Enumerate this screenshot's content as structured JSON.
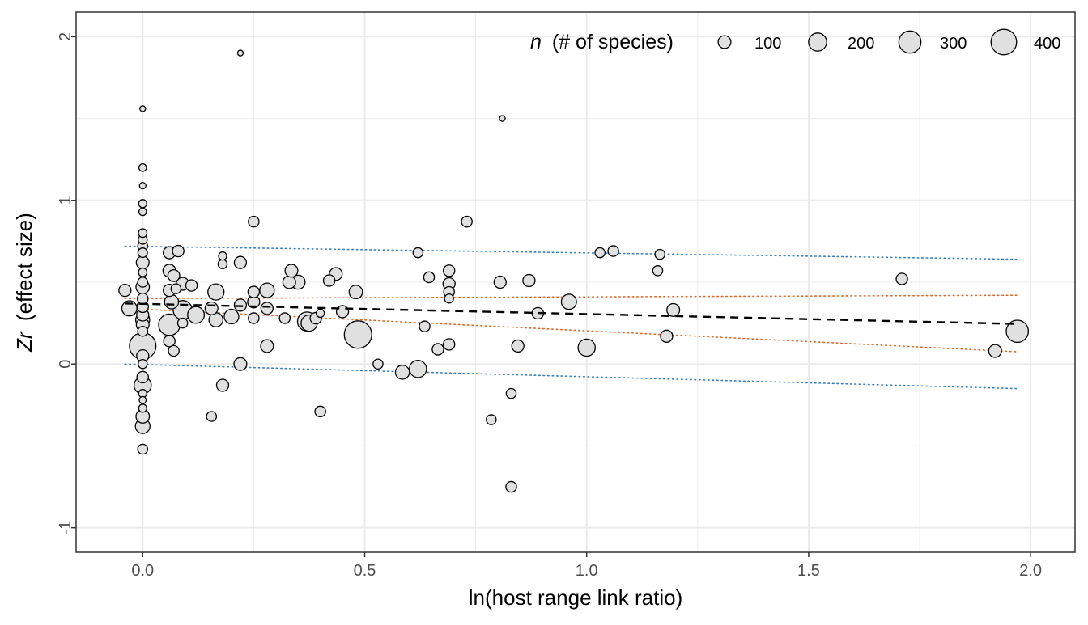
{
  "chart_data": {
    "type": "scatter",
    "title": "",
    "xlabel": "ln(host range link ratio)",
    "ylabel_var": "Zr",
    "ylabel_rest": "(effect size)",
    "xlim": [
      -0.15,
      2.1
    ],
    "ylim": [
      -1.15,
      2.15
    ],
    "xticks": [
      0.0,
      0.5,
      1.0,
      1.5,
      2.0
    ],
    "xtick_labels": [
      "0.0",
      "0.5",
      "1.0",
      "1.5",
      "2.0"
    ],
    "yticks": [
      -1,
      0,
      1,
      2
    ],
    "ytick_labels": [
      "-1",
      "0",
      "1",
      "2"
    ],
    "grid": true,
    "legend": {
      "position": "top-right",
      "title_var": "n",
      "title_rest": "(# of species)",
      "entries": [
        {
          "label": "100",
          "n": 100
        },
        {
          "label": "200",
          "n": 200
        },
        {
          "label": "300",
          "n": 300
        },
        {
          "label": "400",
          "n": 400
        }
      ]
    },
    "colors": {
      "point_fill": "#e0e0e0",
      "point_stroke": "#000000",
      "fit_line": "#000000",
      "confidence_band": "#e06a2a",
      "prediction_band": "#3a7fc0",
      "grid": "#ebebeb",
      "panel_border": "#333333"
    },
    "fit": {
      "x": [
        -0.04,
        1.97
      ],
      "y": [
        0.37,
        0.245
      ]
    },
    "confidence_interval": {
      "x": [
        -0.04,
        1.97
      ],
      "lower": [
        0.34,
        0.075
      ],
      "upper": [
        0.4,
        0.42
      ]
    },
    "prediction_interval": {
      "x": [
        -0.04,
        1.97
      ],
      "lower": [
        0.0,
        -0.15
      ],
      "upper": [
        0.72,
        0.64
      ]
    },
    "points": [
      {
        "x": 0.0,
        "y": 1.56,
        "n": 20
      },
      {
        "x": 0.0,
        "y": 1.2,
        "n": 35
      },
      {
        "x": 0.0,
        "y": 1.09,
        "n": 25
      },
      {
        "x": 0.0,
        "y": 0.98,
        "n": 40
      },
      {
        "x": 0.0,
        "y": 0.93,
        "n": 35
      },
      {
        "x": 0.0,
        "y": 0.8,
        "n": 45
      },
      {
        "x": 0.0,
        "y": 0.76,
        "n": 50
      },
      {
        "x": 0.0,
        "y": 0.72,
        "n": 60
      },
      {
        "x": 0.0,
        "y": 0.68,
        "n": 55
      },
      {
        "x": 0.0,
        "y": 0.62,
        "n": 100
      },
      {
        "x": 0.0,
        "y": 0.56,
        "n": 45
      },
      {
        "x": 0.0,
        "y": 0.5,
        "n": 60
      },
      {
        "x": 0.0,
        "y": 0.47,
        "n": 110
      },
      {
        "x": 0.0,
        "y": 0.4,
        "n": 70
      },
      {
        "x": 0.0,
        "y": 0.35,
        "n": 80
      },
      {
        "x": 0.0,
        "y": 0.3,
        "n": 90
      },
      {
        "x": 0.0,
        "y": 0.27,
        "n": 120
      },
      {
        "x": 0.0,
        "y": 0.24,
        "n": 100
      },
      {
        "x": 0.0,
        "y": 0.2,
        "n": 60
      },
      {
        "x": 0.0,
        "y": 0.11,
        "n": 430
      },
      {
        "x": 0.0,
        "y": 0.05,
        "n": 90
      },
      {
        "x": 0.0,
        "y": 0.0,
        "n": 50
      },
      {
        "x": 0.0,
        "y": -0.08,
        "n": 80
      },
      {
        "x": 0.0,
        "y": -0.13,
        "n": 180
      },
      {
        "x": 0.0,
        "y": -0.18,
        "n": 40
      },
      {
        "x": 0.0,
        "y": -0.22,
        "n": 30
      },
      {
        "x": 0.0,
        "y": -0.27,
        "n": 40
      },
      {
        "x": 0.0,
        "y": -0.32,
        "n": 110
      },
      {
        "x": 0.0,
        "y": -0.38,
        "n": 130
      },
      {
        "x": 0.0,
        "y": -0.52,
        "n": 60
      },
      {
        "x": -0.04,
        "y": 0.45,
        "n": 90
      },
      {
        "x": -0.03,
        "y": 0.34,
        "n": 140
      },
      {
        "x": 0.06,
        "y": 0.68,
        "n": 90
      },
      {
        "x": 0.06,
        "y": 0.57,
        "n": 100
      },
      {
        "x": 0.06,
        "y": 0.45,
        "n": 90
      },
      {
        "x": 0.06,
        "y": 0.14,
        "n": 80
      },
      {
        "x": 0.06,
        "y": 0.24,
        "n": 280
      },
      {
        "x": 0.065,
        "y": 0.38,
        "n": 120
      },
      {
        "x": 0.07,
        "y": 0.54,
        "n": 85
      },
      {
        "x": 0.075,
        "y": 0.46,
        "n": 60
      },
      {
        "x": 0.07,
        "y": 0.08,
        "n": 70
      },
      {
        "x": 0.08,
        "y": 0.69,
        "n": 80
      },
      {
        "x": 0.09,
        "y": 0.33,
        "n": 220
      },
      {
        "x": 0.09,
        "y": 0.25,
        "n": 60
      },
      {
        "x": 0.09,
        "y": 0.49,
        "n": 100
      },
      {
        "x": 0.11,
        "y": 0.48,
        "n": 80
      },
      {
        "x": 0.12,
        "y": 0.3,
        "n": 170
      },
      {
        "x": 0.155,
        "y": 0.34,
        "n": 100
      },
      {
        "x": 0.155,
        "y": -0.32,
        "n": 60
      },
      {
        "x": 0.165,
        "y": 0.44,
        "n": 160
      },
      {
        "x": 0.165,
        "y": 0.27,
        "n": 120
      },
      {
        "x": 0.18,
        "y": 0.66,
        "n": 40
      },
      {
        "x": 0.18,
        "y": 0.61,
        "n": 50
      },
      {
        "x": 0.18,
        "y": -0.13,
        "n": 90
      },
      {
        "x": 0.2,
        "y": 0.29,
        "n": 130
      },
      {
        "x": 0.22,
        "y": 1.9,
        "n": 20
      },
      {
        "x": 0.22,
        "y": 0.62,
        "n": 90
      },
      {
        "x": 0.22,
        "y": 0.36,
        "n": 90
      },
      {
        "x": 0.22,
        "y": 0.0,
        "n": 100
      },
      {
        "x": 0.25,
        "y": 0.87,
        "n": 70
      },
      {
        "x": 0.25,
        "y": 0.44,
        "n": 80
      },
      {
        "x": 0.25,
        "y": 0.38,
        "n": 90
      },
      {
        "x": 0.25,
        "y": 0.28,
        "n": 70
      },
      {
        "x": 0.28,
        "y": 0.45,
        "n": 130
      },
      {
        "x": 0.28,
        "y": 0.34,
        "n": 90
      },
      {
        "x": 0.28,
        "y": 0.11,
        "n": 100
      },
      {
        "x": 0.32,
        "y": 0.28,
        "n": 70
      },
      {
        "x": 0.33,
        "y": 0.5,
        "n": 100
      },
      {
        "x": 0.335,
        "y": 0.57,
        "n": 100
      },
      {
        "x": 0.35,
        "y": 0.5,
        "n": 120
      },
      {
        "x": 0.37,
        "y": 0.26,
        "n": 220
      },
      {
        "x": 0.375,
        "y": 0.25,
        "n": 160
      },
      {
        "x": 0.39,
        "y": 0.28,
        "n": 80
      },
      {
        "x": 0.4,
        "y": 0.31,
        "n": 40
      },
      {
        "x": 0.4,
        "y": -0.29,
        "n": 70
      },
      {
        "x": 0.42,
        "y": 0.51,
        "n": 80
      },
      {
        "x": 0.435,
        "y": 0.55,
        "n": 100
      },
      {
        "x": 0.45,
        "y": 0.32,
        "n": 90
      },
      {
        "x": 0.48,
        "y": 0.44,
        "n": 110
      },
      {
        "x": 0.485,
        "y": 0.18,
        "n": 460
      },
      {
        "x": 0.53,
        "y": 0.0,
        "n": 60
      },
      {
        "x": 0.585,
        "y": -0.05,
        "n": 120
      },
      {
        "x": 0.62,
        "y": -0.03,
        "n": 180
      },
      {
        "x": 0.62,
        "y": 0.68,
        "n": 60
      },
      {
        "x": 0.635,
        "y": 0.23,
        "n": 70
      },
      {
        "x": 0.645,
        "y": 0.53,
        "n": 70
      },
      {
        "x": 0.665,
        "y": 0.09,
        "n": 80
      },
      {
        "x": 0.69,
        "y": 0.57,
        "n": 80
      },
      {
        "x": 0.69,
        "y": 0.49,
        "n": 90
      },
      {
        "x": 0.69,
        "y": 0.44,
        "n": 70
      },
      {
        "x": 0.69,
        "y": 0.4,
        "n": 50
      },
      {
        "x": 0.69,
        "y": 0.12,
        "n": 80
      },
      {
        "x": 0.73,
        "y": 0.87,
        "n": 70
      },
      {
        "x": 0.785,
        "y": -0.34,
        "n": 60
      },
      {
        "x": 0.805,
        "y": 0.5,
        "n": 90
      },
      {
        "x": 0.81,
        "y": 1.5,
        "n": 20
      },
      {
        "x": 0.83,
        "y": -0.18,
        "n": 60
      },
      {
        "x": 0.83,
        "y": -0.75,
        "n": 70
      },
      {
        "x": 0.845,
        "y": 0.11,
        "n": 90
      },
      {
        "x": 0.87,
        "y": 0.51,
        "n": 90
      },
      {
        "x": 0.89,
        "y": 0.31,
        "n": 80
      },
      {
        "x": 0.96,
        "y": 0.38,
        "n": 140
      },
      {
        "x": 1.0,
        "y": 0.1,
        "n": 180
      },
      {
        "x": 1.03,
        "y": 0.68,
        "n": 60
      },
      {
        "x": 1.06,
        "y": 0.69,
        "n": 70
      },
      {
        "x": 1.16,
        "y": 0.57,
        "n": 60
      },
      {
        "x": 1.165,
        "y": 0.67,
        "n": 60
      },
      {
        "x": 1.18,
        "y": 0.17,
        "n": 90
      },
      {
        "x": 1.195,
        "y": 0.33,
        "n": 100
      },
      {
        "x": 1.71,
        "y": 0.52,
        "n": 80
      },
      {
        "x": 1.92,
        "y": 0.08,
        "n": 100
      },
      {
        "x": 1.97,
        "y": 0.2,
        "n": 300
      }
    ]
  }
}
